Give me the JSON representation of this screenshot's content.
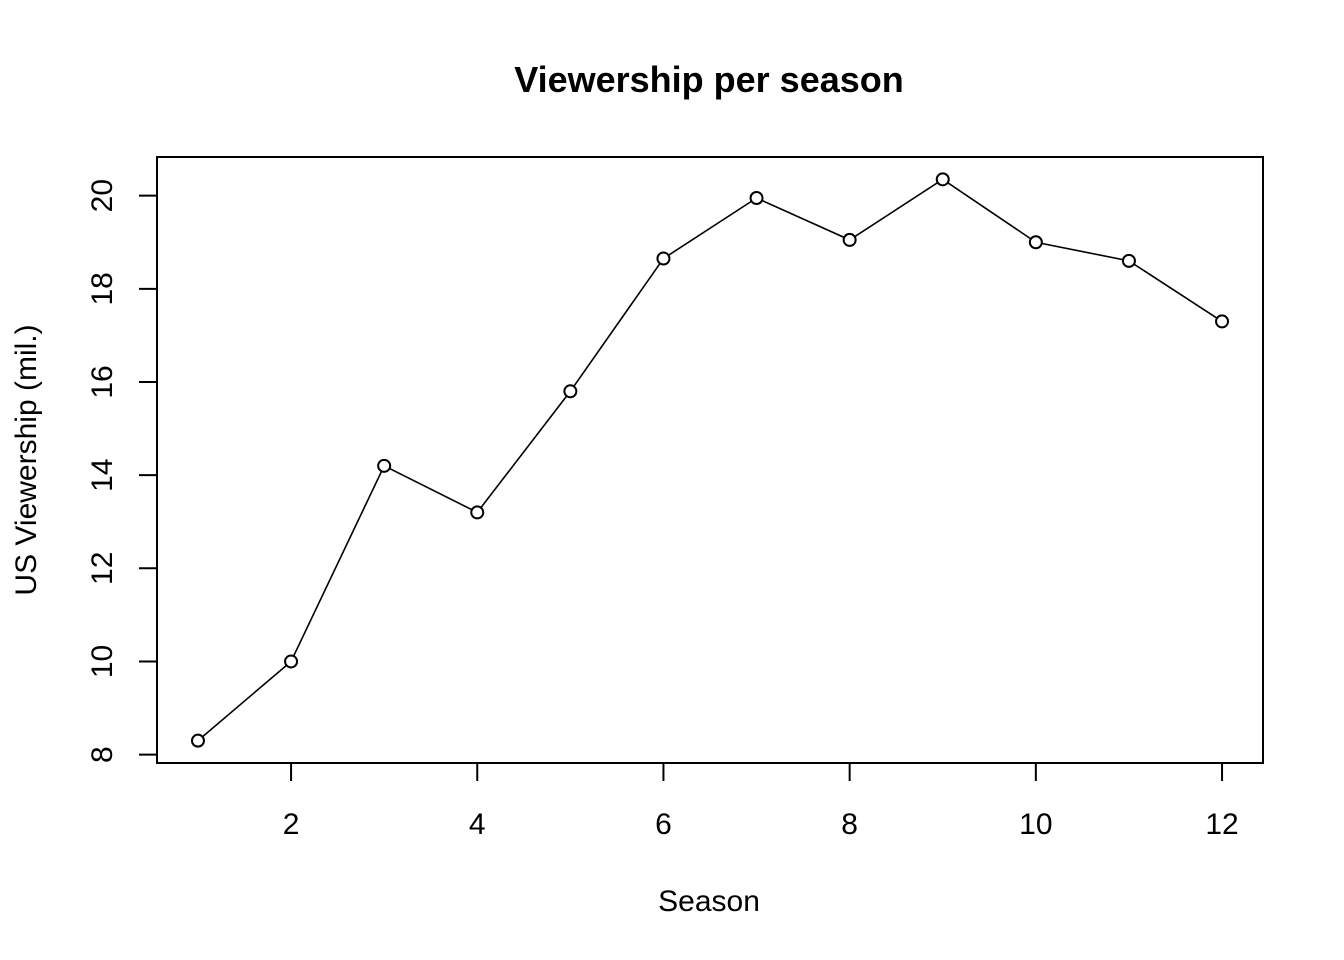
{
  "chart_data": {
    "type": "line",
    "title": "Viewership per season",
    "xlabel": "Season",
    "ylabel": "US Viewership (mil.)",
    "x": [
      1,
      2,
      3,
      4,
      5,
      6,
      7,
      8,
      9,
      10,
      11,
      12
    ],
    "series": [
      {
        "values": [
          8.3,
          10.0,
          14.2,
          13.2,
          15.8,
          18.65,
          19.95,
          19.05,
          20.35,
          19.0,
          18.6,
          17.3
        ]
      }
    ],
    "xticks": [
      2,
      4,
      6,
      8,
      10,
      12
    ],
    "yticks": [
      8,
      10,
      12,
      14,
      16,
      18,
      20
    ],
    "xlim": [
      0.56,
      12.44
    ],
    "ylim": [
      7.82,
      20.83
    ],
    "grid": false,
    "marker": "open-circle",
    "colors": {
      "line": "#000000",
      "marker_fill": "#ffffff"
    }
  }
}
